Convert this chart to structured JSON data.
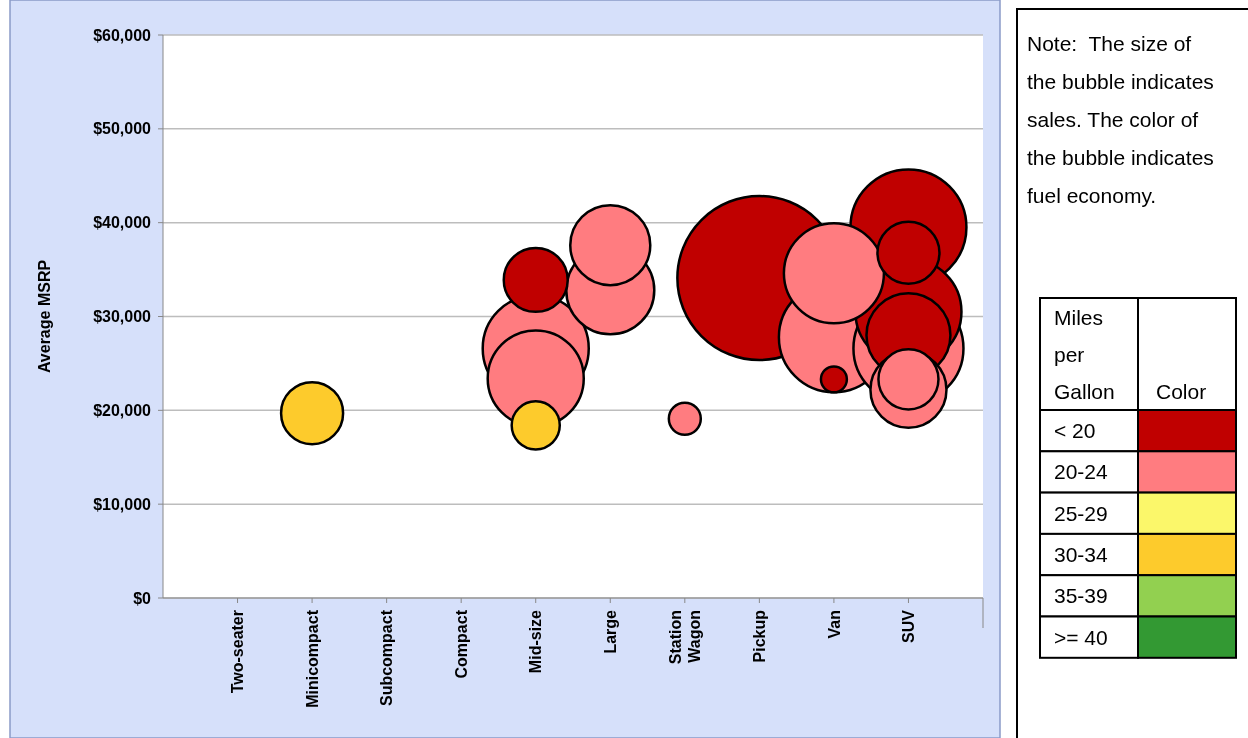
{
  "chart_data": {
    "type": "bubble",
    "ylabel": "Average MSRP",
    "categories": [
      "Two-seater",
      "Minicompact",
      "Subcompact",
      "Compact",
      "Mid-size",
      "Large",
      "Station Wagon",
      "Pickup",
      "Van",
      "SUV"
    ],
    "ylim": [
      0,
      60000
    ],
    "yticks": [
      {
        "value": 0,
        "label": "$0"
      },
      {
        "value": 10000,
        "label": "$10,000"
      },
      {
        "value": 20000,
        "label": "$20,000"
      },
      {
        "value": 30000,
        "label": "$30,000"
      },
      {
        "value": 40000,
        "label": "$40,000"
      },
      {
        "value": 50000,
        "label": "$50,000"
      },
      {
        "value": 60000,
        "label": "$60,000"
      }
    ],
    "grid": "y",
    "legend": "right",
    "legend_title": "Miles per Gallon",
    "annotations": [
      "Note:  The size of the bubble indicates sales. The color of the bubble indicates fuel economy.",
      "Color"
    ],
    "series": [
      {
        "name": "< 20",
        "color": "#c00000",
        "x": [
          "Mid-size",
          "Pickup",
          "Van",
          "SUV",
          "SUV",
          "SUV",
          "SUV"
        ],
        "values": [
          33900,
          34100,
          23300,
          39500,
          36800,
          30500,
          28000
        ],
        "sizes": [
          0.152,
          1,
          0.025,
          0.5,
          0.143,
          0.418,
          0.262
        ]
      },
      {
        "name": "20-24",
        "color": "#ff7c80",
        "x": [
          "Mid-size",
          "Mid-size",
          "Large",
          "Large",
          "Station Wagon",
          "Van",
          "Van",
          "SUV",
          "SUV",
          "SUV"
        ],
        "values": [
          26600,
          23400,
          37600,
          32800,
          19100,
          34600,
          27800,
          26600,
          22200,
          23300
        ],
        "sizes": [
          0.418,
          0.343,
          0.238,
          0.288,
          0.038,
          0.372,
          0.45,
          0.45,
          0.215,
          0.134
        ]
      },
      {
        "name": "25-29",
        "color": "#fbf76a",
        "values": [
          null,
          null,
          null,
          null,
          null,
          null,
          null,
          null,
          null,
          null
        ],
        "sizes": [
          null,
          null,
          null,
          null,
          null,
          null,
          null,
          null,
          null,
          null
        ]
      },
      {
        "name": "30-34",
        "color": "#fdcb2c",
        "x": [
          "Minicompact",
          "Mid-size"
        ],
        "values": [
          19700,
          18400
        ],
        "sizes": [
          0.143,
          0.086
        ]
      },
      {
        "name": "35-39",
        "color": "#92d050",
        "values": [
          null,
          null,
          null,
          null,
          null,
          null,
          null,
          null,
          null,
          null
        ],
        "sizes": [
          null,
          null,
          null,
          null,
          null,
          null,
          null,
          null,
          null,
          null
        ]
      },
      {
        "name": ">= 40",
        "color": "#339933",
        "values": [
          null,
          null,
          null,
          null,
          null,
          null,
          null,
          null,
          null,
          null
        ],
        "sizes": [
          null,
          null,
          null,
          null,
          null,
          null,
          null,
          null,
          null,
          null
        ]
      }
    ]
  }
}
